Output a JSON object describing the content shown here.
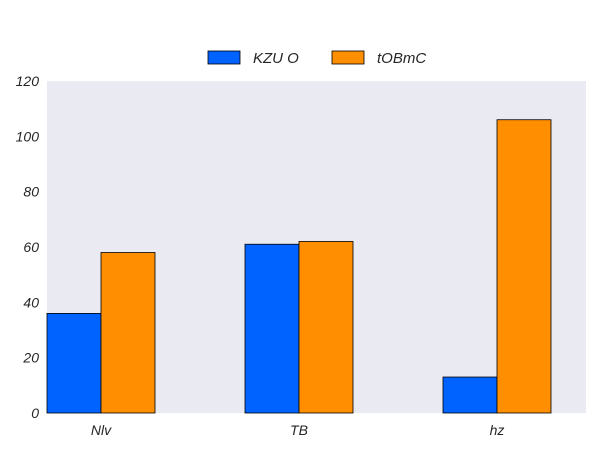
{
  "chart_data": {
    "type": "bar",
    "title": "",
    "xlabel": "",
    "ylabel": "",
    "categories": [
      "Nlv",
      "TB",
      "hz"
    ],
    "series": [
      {
        "name": "KZU O",
        "color": "#0062ff",
        "values": [
          36,
          61,
          13
        ]
      },
      {
        "name": "tOBmC",
        "color": "#ff8f00",
        "values": [
          58,
          62,
          106
        ]
      }
    ],
    "ylim": [
      0,
      120
    ],
    "yticks": [
      0,
      20,
      40,
      60,
      80,
      100,
      120
    ],
    "grid": false,
    "legend_position": "top-center",
    "plot_background": "#eaeaf2"
  }
}
